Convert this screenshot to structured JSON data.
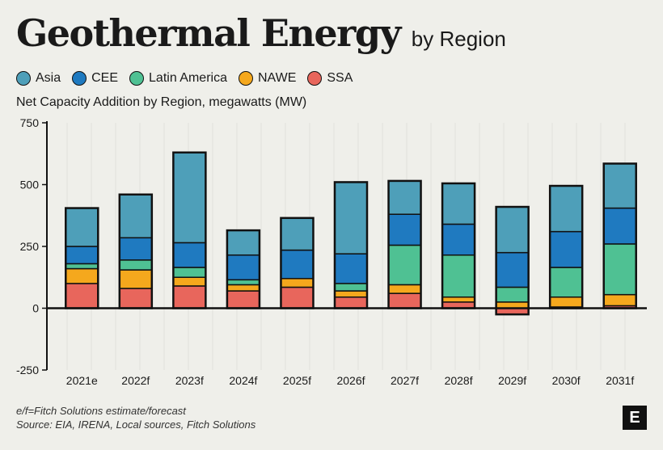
{
  "header": {
    "title": "Geothermal Energy",
    "title_suffix": "by Region"
  },
  "footer": {
    "note": "e/f=Fitch Solutions estimate/forecast",
    "source": "Source: EIA, IRENA, Local sources, Fitch Solutions",
    "logo_text": "E"
  },
  "chart_data": {
    "type": "bar",
    "stacked": true,
    "subtitle": "Net Capacity Addition by Region, megawatts (MW)",
    "ylim": [
      -250,
      750
    ],
    "yticks": [
      750,
      500,
      250,
      0,
      -250
    ],
    "ytick_labels": [
      "750",
      "500",
      "250",
      "0",
      "-250"
    ],
    "grid": true,
    "legend_position": "top-left",
    "categories": [
      "2021e",
      "2022f",
      "2023f",
      "2024f",
      "2025f",
      "2026f",
      "2027f",
      "2028f",
      "2029f",
      "2030f",
      "2031f"
    ],
    "series": [
      {
        "name": "SSA",
        "color": "#e8665c",
        "values": [
          100,
          80,
          90,
          70,
          85,
          45,
          60,
          25,
          -25,
          5,
          10
        ]
      },
      {
        "name": "NAWE",
        "color": "#f5a81d",
        "values": [
          60,
          75,
          35,
          25,
          35,
          25,
          35,
          20,
          25,
          40,
          45
        ]
      },
      {
        "name": "Latin America",
        "color": "#4fc193",
        "values": [
          20,
          40,
          40,
          20,
          0,
          30,
          160,
          170,
          60,
          120,
          205
        ]
      },
      {
        "name": "CEE",
        "color": "#1f7ac0",
        "values": [
          70,
          90,
          100,
          100,
          115,
          120,
          125,
          125,
          140,
          145,
          145
        ]
      },
      {
        "name": "Asia",
        "color": "#4e9fb9",
        "values": [
          155,
          175,
          365,
          100,
          130,
          290,
          135,
          165,
          185,
          185,
          180
        ]
      }
    ]
  }
}
